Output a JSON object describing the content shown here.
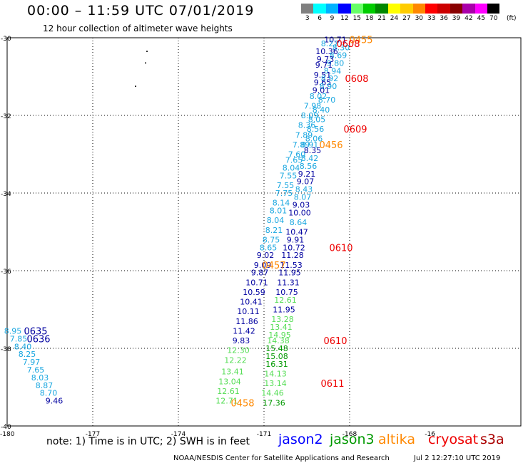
{
  "title": "00:00 – 11:59 UTC 07/01/2019",
  "subtitle": "12 hour collection of altimeter wave heights",
  "legend": {
    "unit": "(ft)",
    "items": [
      {
        "label": "3",
        "color": "#808080"
      },
      {
        "label": "6",
        "color": "#00ffff"
      },
      {
        "label": "9",
        "color": "#00b2ff"
      },
      {
        "label": "12",
        "color": "#0000ff"
      },
      {
        "label": "15",
        "color": "#66ff66"
      },
      {
        "label": "18",
        "color": "#00cc00"
      },
      {
        "label": "21",
        "color": "#008800"
      },
      {
        "label": "24",
        "color": "#ffff00"
      },
      {
        "label": "27",
        "color": "#ffcc00"
      },
      {
        "label": "30",
        "color": "#ff8800"
      },
      {
        "label": "33",
        "color": "#ff0000"
      },
      {
        "label": "36",
        "color": "#cc0000"
      },
      {
        "label": "39",
        "color": "#880000"
      },
      {
        "label": "42",
        "color": "#aa00aa"
      },
      {
        "label": "45",
        "color": "#ff00ff"
      },
      {
        "label": "70",
        "color": "#000000"
      }
    ]
  },
  "axes": {
    "lon_labels": [
      "-180",
      "-177",
      "-174",
      "-171",
      "-168",
      "-16"
    ],
    "lat_labels": [
      "-30",
      "-32",
      "-34",
      "-36",
      "-38",
      "-40"
    ]
  },
  "colors": {
    "light": "#1aa7e0",
    "dark": "#0000a0",
    "lgreen": "#55dd55",
    "dgreen": "#009900",
    "orange": "#ff8800",
    "red": "#ee0000"
  },
  "observations": [
    {
      "t": "10.71",
      "c": "dark",
      "lon": -168.5,
      "lat": -30.05
    },
    {
      "t": "8.27",
      "c": "light",
      "lon": -168.7,
      "lat": -30.15
    },
    {
      "t": "8.30",
      "c": "light",
      "lon": -168.3,
      "lat": -30.25
    },
    {
      "t": "10.36",
      "c": "dark",
      "lon": -168.8,
      "lat": -30.35
    },
    {
      "t": "8.69",
      "c": "light",
      "lon": -168.4,
      "lat": -30.45
    },
    {
      "t": "9.73",
      "c": "dark",
      "lon": -168.85,
      "lat": -30.55
    },
    {
      "t": "9.80",
      "c": "light",
      "lon": -168.5,
      "lat": -30.65
    },
    {
      "t": "9.71",
      "c": "dark",
      "lon": -168.9,
      "lat": -30.7
    },
    {
      "t": "8.94",
      "c": "light",
      "lon": -168.6,
      "lat": -30.85
    },
    {
      "t": "9.51",
      "c": "dark",
      "lon": -168.95,
      "lat": -30.95
    },
    {
      "t": "8.92",
      "c": "light",
      "lon": -168.7,
      "lat": -31.05
    },
    {
      "t": "9.65",
      "c": "dark",
      "lon": -168.95,
      "lat": -31.15
    },
    {
      "t": "8.90",
      "c": "light",
      "lon": -168.75,
      "lat": -31.25
    },
    {
      "t": "9.01",
      "c": "dark",
      "lon": -169.0,
      "lat": -31.35
    },
    {
      "t": "8.02",
      "c": "light",
      "lon": -169.1,
      "lat": -31.5
    },
    {
      "t": "8.70",
      "c": "light",
      "lon": -168.8,
      "lat": -31.6
    },
    {
      "t": "7.98",
      "c": "light",
      "lon": -169.3,
      "lat": -31.75
    },
    {
      "t": "8.40",
      "c": "light",
      "lon": -169.0,
      "lat": -31.85
    },
    {
      "t": "8.09",
      "c": "light",
      "lon": -169.4,
      "lat": -32.0
    },
    {
      "t": "8.05",
      "c": "light",
      "lon": -169.15,
      "lat": -32.1
    },
    {
      "t": "8.36",
      "c": "light",
      "lon": -169.5,
      "lat": -32.25
    },
    {
      "t": "8.56",
      "c": "light",
      "lon": -169.2,
      "lat": -32.35
    },
    {
      "t": "7.89",
      "c": "light",
      "lon": -169.6,
      "lat": -32.5
    },
    {
      "t": "8.06",
      "c": "light",
      "lon": -169.25,
      "lat": -32.6
    },
    {
      "t": "7.89",
      "c": "light",
      "lon": -169.7,
      "lat": -32.75
    },
    {
      "t": "8.91",
      "c": "light",
      "lon": -169.4,
      "lat": -32.75
    },
    {
      "t": "8.35",
      "c": "dark",
      "lon": -169.3,
      "lat": -32.9
    },
    {
      "t": "7.60",
      "c": "light",
      "lon": -169.85,
      "lat": -33.0
    },
    {
      "t": "8.42",
      "c": "light",
      "lon": -169.4,
      "lat": -33.1
    },
    {
      "t": "7.65",
      "c": "light",
      "lon": -169.95,
      "lat": -33.15
    },
    {
      "t": "8.56",
      "c": "light",
      "lon": -169.45,
      "lat": -33.3
    },
    {
      "t": "8.04",
      "c": "light",
      "lon": -170.05,
      "lat": -33.35
    },
    {
      "t": "9.21",
      "c": "dark",
      "lon": -169.5,
      "lat": -33.5
    },
    {
      "t": "7.55",
      "c": "light",
      "lon": -170.15,
      "lat": -33.55
    },
    {
      "t": "9.07",
      "c": "dark",
      "lon": -169.55,
      "lat": -33.7
    },
    {
      "t": "7.55",
      "c": "light",
      "lon": -170.25,
      "lat": -33.8
    },
    {
      "t": "8.43",
      "c": "light",
      "lon": -169.6,
      "lat": -33.9
    },
    {
      "t": "7.75",
      "c": "light",
      "lon": -170.3,
      "lat": -34.0
    },
    {
      "t": "8.07",
      "c": "light",
      "lon": -169.65,
      "lat": -34.1
    },
    {
      "t": "8.14",
      "c": "light",
      "lon": -170.4,
      "lat": -34.25
    },
    {
      "t": "9.03",
      "c": "dark",
      "lon": -169.7,
      "lat": -34.3
    },
    {
      "t": "8.01",
      "c": "light",
      "lon": -170.5,
      "lat": -34.45
    },
    {
      "t": "10.00",
      "c": "dark",
      "lon": -169.75,
      "lat": -34.5
    },
    {
      "t": "8.04",
      "c": "light",
      "lon": -170.6,
      "lat": -34.7
    },
    {
      "t": "8.64",
      "c": "light",
      "lon": -169.8,
      "lat": -34.75
    },
    {
      "t": "8.21",
      "c": "light",
      "lon": -170.65,
      "lat": -34.95
    },
    {
      "t": "10.47",
      "c": "dark",
      "lon": -169.85,
      "lat": -35.0
    },
    {
      "t": "8.75",
      "c": "light",
      "lon": -170.75,
      "lat": -35.2
    },
    {
      "t": "9.91",
      "c": "dark",
      "lon": -169.9,
      "lat": -35.2
    },
    {
      "t": "8.65",
      "c": "light",
      "lon": -170.85,
      "lat": -35.4
    },
    {
      "t": "10.72",
      "c": "dark",
      "lon": -169.95,
      "lat": -35.4
    },
    {
      "t": "9.02",
      "c": "dark",
      "lon": -170.95,
      "lat": -35.6
    },
    {
      "t": "11.28",
      "c": "dark",
      "lon": -170.0,
      "lat": -35.6
    },
    {
      "t": "9.09",
      "c": "dark",
      "lon": -171.05,
      "lat": -35.85
    },
    {
      "t": "11.53",
      "c": "dark",
      "lon": -170.05,
      "lat": -35.85
    },
    {
      "t": "9.87",
      "c": "dark",
      "lon": -171.15,
      "lat": -36.05
    },
    {
      "t": "11.95",
      "c": "dark",
      "lon": -170.1,
      "lat": -36.05
    },
    {
      "t": "10.71",
      "c": "dark",
      "lon": -171.25,
      "lat": -36.3
    },
    {
      "t": "11.31",
      "c": "dark",
      "lon": -170.15,
      "lat": -36.3
    },
    {
      "t": "10.59",
      "c": "dark",
      "lon": -171.35,
      "lat": -36.55
    },
    {
      "t": "10.75",
      "c": "dark",
      "lon": -170.2,
      "lat": -36.55
    },
    {
      "t": "10.41",
      "c": "dark",
      "lon": -171.45,
      "lat": -36.8
    },
    {
      "t": "12.61",
      "c": "lgreen",
      "lon": -170.25,
      "lat": -36.75
    },
    {
      "t": "10.11",
      "c": "dark",
      "lon": -171.55,
      "lat": -37.05
    },
    {
      "t": "11.95",
      "c": "dark",
      "lon": -170.3,
      "lat": -37.0
    },
    {
      "t": "11.86",
      "c": "dark",
      "lon": -171.6,
      "lat": -37.3
    },
    {
      "t": "13.28",
      "c": "lgreen",
      "lon": -170.35,
      "lat": -37.25
    },
    {
      "t": "13.41",
      "c": "lgreen",
      "lon": -170.4,
      "lat": -37.45
    },
    {
      "t": "11.42",
      "c": "dark",
      "lon": -171.7,
      "lat": -37.55
    },
    {
      "t": "14.95",
      "c": "lgreen",
      "lon": -170.45,
      "lat": -37.65
    },
    {
      "t": "9.83",
      "c": "dark",
      "lon": -171.8,
      "lat": -37.8
    },
    {
      "t": "14.38",
      "c": "lgreen",
      "lon": -170.5,
      "lat": -37.8
    },
    {
      "t": "15.48",
      "c": "dgreen",
      "lon": -170.55,
      "lat": -38.0
    },
    {
      "t": "12.30",
      "c": "lgreen",
      "lon": -171.9,
      "lat": -38.05
    },
    {
      "t": "15.08",
      "c": "dgreen",
      "lon": -170.55,
      "lat": -38.2
    },
    {
      "t": "12.22",
      "c": "lgreen",
      "lon": -172.0,
      "lat": -38.3
    },
    {
      "t": "16.31",
      "c": "dgreen",
      "lon": -170.55,
      "lat": -38.4
    },
    {
      "t": "13.41",
      "c": "lgreen",
      "lon": -172.1,
      "lat": -38.6
    },
    {
      "t": "14.13",
      "c": "lgreen",
      "lon": -170.6,
      "lat": -38.65
    },
    {
      "t": "13.04",
      "c": "lgreen",
      "lon": -172.2,
      "lat": -38.85
    },
    {
      "t": "13.14",
      "c": "lgreen",
      "lon": -170.6,
      "lat": -38.9
    },
    {
      "t": "12.61",
      "c": "lgreen",
      "lon": -172.25,
      "lat": -39.1
    },
    {
      "t": "14.46",
      "c": "lgreen",
      "lon": -170.7,
      "lat": -39.15
    },
    {
      "t": "12.71",
      "c": "lgreen",
      "lon": -172.3,
      "lat": -39.35
    },
    {
      "t": "17.36",
      "c": "dgreen",
      "lon": -170.65,
      "lat": -39.4
    },
    {
      "t": "8.95",
      "c": "light",
      "lon": -179.8,
      "lat": -37.55
    },
    {
      "t": "7.85",
      "c": "light",
      "lon": -179.6,
      "lat": -37.75
    },
    {
      "t": "8.40",
      "c": "light",
      "lon": -179.45,
      "lat": -37.95
    },
    {
      "t": "8.25",
      "c": "light",
      "lon": -179.3,
      "lat": -38.15
    },
    {
      "t": "7.97",
      "c": "light",
      "lon": -179.15,
      "lat": -38.35
    },
    {
      "t": "7.65",
      "c": "light",
      "lon": -179.0,
      "lat": -38.55
    },
    {
      "t": "8.03",
      "c": "light",
      "lon": -178.85,
      "lat": -38.75
    },
    {
      "t": "8.87",
      "c": "light",
      "lon": -178.7,
      "lat": -38.95
    },
    {
      "t": "8.70",
      "c": "light",
      "lon": -178.55,
      "lat": -39.15
    },
    {
      "t": "9.46",
      "c": "dark",
      "lon": -178.35,
      "lat": -39.35
    }
  ],
  "time_labels": [
    {
      "t": "0455",
      "c": "orange",
      "lon": -167.6,
      "lat": -30.05
    },
    {
      "t": "0608",
      "c": "red",
      "lon": -168.05,
      "lat": -30.15
    },
    {
      "t": "0608",
      "c": "red",
      "lon": -167.75,
      "lat": -31.05
    },
    {
      "t": "0609",
      "c": "red",
      "lon": -167.8,
      "lat": -32.35
    },
    {
      "t": "0456",
      "c": "orange",
      "lon": -168.65,
      "lat": -32.75
    },
    {
      "t": "0610",
      "c": "red",
      "lon": -168.3,
      "lat": -35.4
    },
    {
      "t": "0457",
      "c": "orange",
      "lon": -170.65,
      "lat": -35.85
    },
    {
      "t": "0610",
      "c": "red",
      "lon": -168.5,
      "lat": -37.8
    },
    {
      "t": "0611",
      "c": "red",
      "lon": -168.6,
      "lat": -38.9
    },
    {
      "t": "0458",
      "c": "orange",
      "lon": -171.75,
      "lat": -39.4
    },
    {
      "t": "0635",
      "c": "dark",
      "lon": -179.0,
      "lat": -37.55
    },
    {
      "t": "0636",
      "c": "dark",
      "lon": -178.9,
      "lat": -37.75
    }
  ],
  "note": "note:  1) Time is in UTC;  2) SWH is in feet",
  "satellites": [
    {
      "name": "jason2",
      "color": "#0000ff"
    },
    {
      "name": "jason3",
      "color": "#009900"
    },
    {
      "name": "altika",
      "color": "#ff8800"
    },
    {
      "name": "cryosat",
      "color": "#ee0000"
    },
    {
      "name": "s3a",
      "color": "#aa0000"
    }
  ],
  "footer": {
    "center": "NOAA/NESDIS Center for Satellite Applications and Research",
    "stamp": "Jul  2 12:27:10 UTC 2019"
  }
}
